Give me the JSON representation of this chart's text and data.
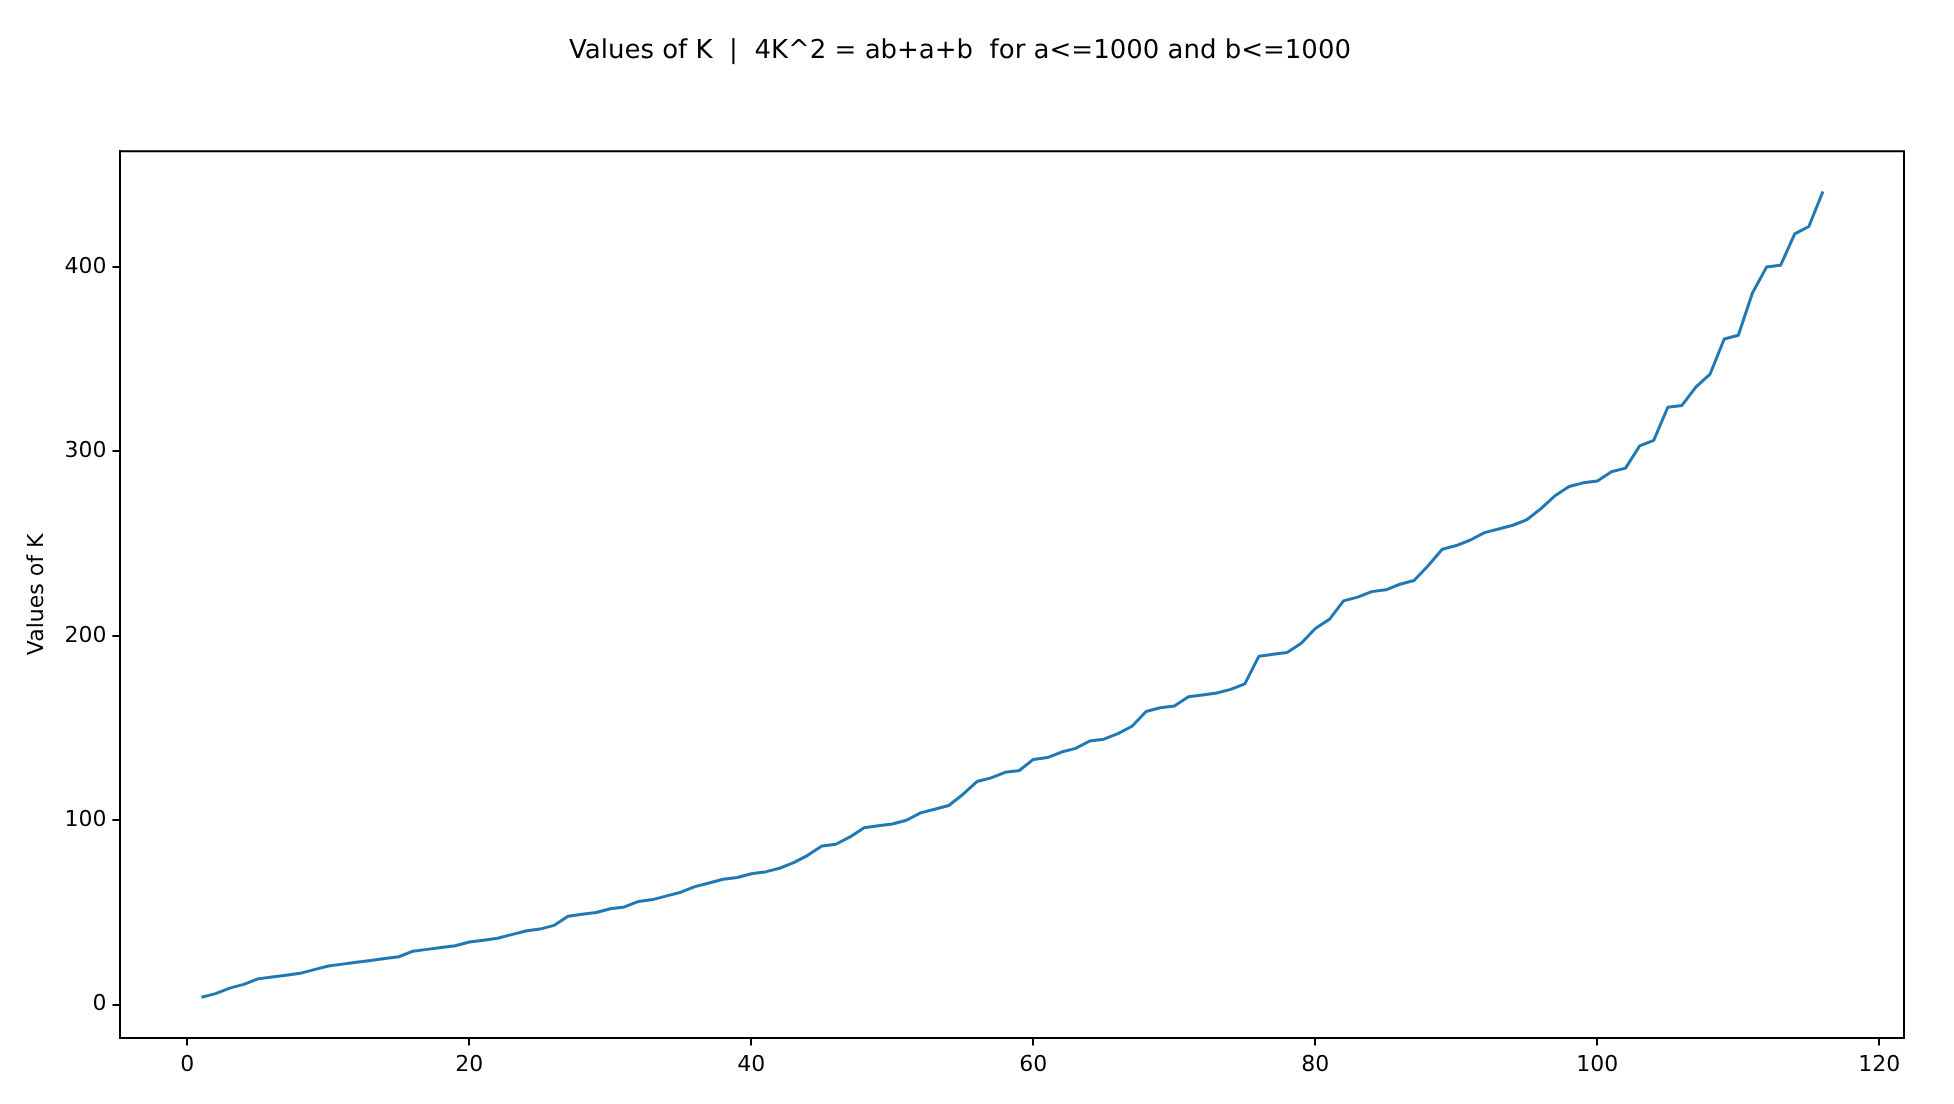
{
  "chart_data": {
    "type": "line",
    "title": "Values of K  |  4K^2 = ab+a+b  for a<=1000 and b<=1000",
    "ylabel": "Values of K",
    "x": [
      1,
      2,
      3,
      4,
      5,
      6,
      7,
      8,
      9,
      10,
      11,
      12,
      13,
      14,
      15,
      16,
      17,
      18,
      19,
      20,
      21,
      22,
      23,
      24,
      25,
      26,
      27,
      28,
      29,
      30,
      31,
      32,
      33,
      34,
      35,
      36,
      37,
      38,
      39,
      40,
      41,
      42,
      43,
      44,
      45,
      46,
      47,
      48,
      49,
      50,
      51,
      52,
      53,
      54,
      55,
      56,
      57,
      58,
      59,
      60,
      61,
      62,
      63,
      64,
      65,
      66,
      67,
      68,
      69,
      70,
      71,
      72,
      73,
      74,
      75,
      76,
      77,
      78,
      79,
      80,
      81,
      82,
      83,
      84,
      85,
      86,
      87,
      88,
      89,
      90,
      91,
      92,
      93,
      94,
      95,
      96,
      97,
      98,
      99,
      100,
      101,
      102,
      103,
      104,
      105,
      106,
      107,
      108,
      109,
      110,
      111,
      112,
      113,
      114,
      115,
      116
    ],
    "series": [
      {
        "color": "#1f77b4",
        "values": [
          4,
          6,
          9,
          11,
          14,
          15,
          16,
          17,
          19,
          21,
          22,
          23,
          24,
          25,
          26,
          29,
          30,
          31,
          32,
          34,
          35,
          36,
          38,
          40,
          41,
          43,
          48,
          49,
          50,
          52,
          53,
          56,
          57,
          59,
          61,
          64,
          66,
          68,
          69,
          71,
          72,
          74,
          77,
          81,
          86,
          87,
          91,
          96,
          97,
          98,
          100,
          104,
          106,
          108,
          114,
          121,
          123,
          126,
          127,
          133,
          134,
          137,
          139,
          143,
          144,
          147,
          151,
          159,
          161,
          162,
          167,
          168,
          169,
          171,
          174,
          189,
          190,
          191,
          196,
          204,
          209,
          219,
          221,
          224,
          225,
          228,
          230,
          238,
          247,
          249,
          252,
          256,
          258,
          260,
          263,
          269,
          276,
          281,
          283,
          284,
          289,
          291,
          303,
          306,
          324,
          325,
          335,
          342,
          361,
          363,
          386,
          400,
          401,
          418,
          422,
          441
        ]
      }
    ],
    "xlim": [
      -4.75,
      121.75
    ],
    "ylim": [
      -17.85,
      462.85
    ],
    "xticks": [
      0,
      20,
      40,
      60,
      80,
      100,
      120
    ],
    "yticks": [
      0,
      100,
      200,
      300,
      400
    ],
    "grid": false,
    "legend": false,
    "marker": "none",
    "line_style": "solid"
  }
}
